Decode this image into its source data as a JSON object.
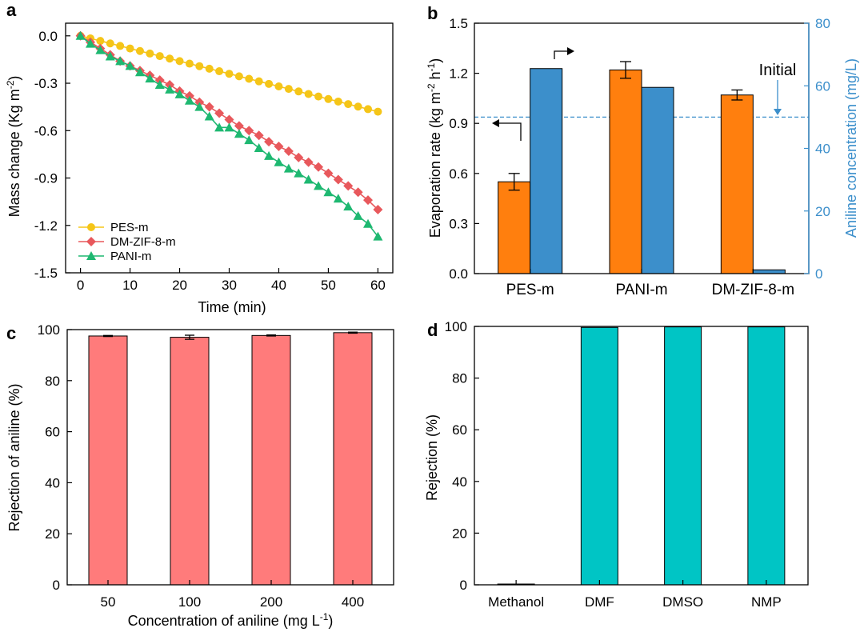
{
  "chart_data": [
    {
      "panel": "a",
      "type": "line",
      "xlabel": "Time (min)",
      "ylabel": "Mass change (Kg m-2)",
      "ylabel_main": "Mass change (Kg m",
      "ylabel_sup": "-2",
      "ylabel_end": ")",
      "xlim": [
        -3,
        63
      ],
      "ylim": [
        -1.5,
        0.08
      ],
      "xticks": [
        0,
        10,
        20,
        30,
        40,
        50,
        60
      ],
      "yticks": [
        0.0,
        -0.3,
        -0.6,
        -0.9,
        -1.2,
        -1.5
      ],
      "ytick_labels": [
        "0.0",
        "-0.3",
        "-0.6",
        "-0.9",
        "-1.2",
        "-1.5"
      ],
      "series": [
        {
          "name": "PES-m",
          "color": "#F5C518",
          "marker": "circle",
          "x": [
            0,
            2,
            4,
            6,
            8,
            10,
            12,
            14,
            16,
            18,
            20,
            22,
            24,
            26,
            28,
            30,
            32,
            34,
            36,
            38,
            40,
            42,
            44,
            46,
            48,
            50,
            52,
            54,
            56,
            58,
            60
          ],
          "y": [
            0,
            -0.016,
            -0.032,
            -0.048,
            -0.064,
            -0.08,
            -0.096,
            -0.112,
            -0.128,
            -0.144,
            -0.16,
            -0.176,
            -0.192,
            -0.208,
            -0.224,
            -0.24,
            -0.256,
            -0.272,
            -0.288,
            -0.304,
            -0.32,
            -0.336,
            -0.352,
            -0.368,
            -0.384,
            -0.4,
            -0.416,
            -0.432,
            -0.448,
            -0.464,
            -0.48
          ]
        },
        {
          "name": "DM-ZIF-8-m",
          "color": "#E8585C",
          "marker": "diamond",
          "x": [
            0,
            2,
            4,
            6,
            8,
            10,
            12,
            14,
            16,
            18,
            20,
            22,
            24,
            26,
            28,
            30,
            32,
            34,
            36,
            38,
            40,
            42,
            44,
            46,
            48,
            50,
            52,
            54,
            56,
            58,
            60
          ],
          "y": [
            0,
            -0.04,
            -0.08,
            -0.12,
            -0.16,
            -0.19,
            -0.22,
            -0.25,
            -0.28,
            -0.31,
            -0.35,
            -0.38,
            -0.42,
            -0.45,
            -0.49,
            -0.53,
            -0.57,
            -0.6,
            -0.63,
            -0.67,
            -0.7,
            -0.73,
            -0.77,
            -0.8,
            -0.83,
            -0.87,
            -0.91,
            -0.95,
            -0.99,
            -1.04,
            -1.1
          ]
        },
        {
          "name": "PANI-m",
          "color": "#1EB871",
          "marker": "triangle",
          "x": [
            0,
            2,
            4,
            6,
            8,
            10,
            12,
            14,
            16,
            18,
            20,
            22,
            24,
            26,
            28,
            30,
            32,
            34,
            36,
            38,
            40,
            42,
            44,
            46,
            48,
            50,
            52,
            54,
            56,
            58,
            60
          ],
          "y": [
            0,
            -0.05,
            -0.09,
            -0.13,
            -0.16,
            -0.19,
            -0.23,
            -0.27,
            -0.31,
            -0.34,
            -0.37,
            -0.41,
            -0.45,
            -0.51,
            -0.58,
            -0.58,
            -0.62,
            -0.66,
            -0.71,
            -0.76,
            -0.8,
            -0.84,
            -0.87,
            -0.91,
            -0.95,
            -0.99,
            -1.03,
            -1.08,
            -1.14,
            -1.19,
            -1.27
          ]
        }
      ],
      "legend": "bottom-left"
    },
    {
      "panel": "b",
      "type": "bar",
      "categories": [
        "PES-m",
        "PANI-m",
        "DM-ZIF-8-m"
      ],
      "ylabel_main": "Evaporation rate (kg m",
      "ylabel_sup1": "-2",
      "ylabel_mid": " h",
      "ylabel_sup2": "-1",
      "ylabel_end": ")",
      "ylabel_right": "Aniline concentration (mg/L)",
      "ylim": [
        0,
        1.5
      ],
      "ylim_right": [
        0,
        80
      ],
      "yticks": [
        0.0,
        0.3,
        0.6,
        0.9,
        1.2,
        1.5
      ],
      "ytick_labels": [
        "0.0",
        "0.3",
        "0.6",
        "0.9",
        "1.2",
        "1.5"
      ],
      "yticks_right": [
        0,
        20,
        40,
        60,
        80
      ],
      "series": [
        {
          "name": "Evaporation rate",
          "axis": "left",
          "color": "#FF7F0E",
          "values": [
            0.55,
            1.22,
            1.07
          ],
          "errors": [
            0.05,
            0.05,
            0.03
          ]
        },
        {
          "name": "Aniline concentration",
          "axis": "right",
          "color": "#3C8FCB",
          "values": [
            65.5,
            59.5,
            1.2
          ]
        }
      ],
      "initial_line": {
        "value": 50,
        "label": "Initial",
        "color": "#3C8FCB"
      },
      "right_axis_color": "#3C8FCB"
    },
    {
      "panel": "c",
      "type": "bar",
      "categories": [
        "50",
        "100",
        "200",
        "400"
      ],
      "values": [
        97.5,
        97.0,
        97.7,
        98.8
      ],
      "errors": [
        0.2,
        0.8,
        0.2,
        0.2
      ],
      "color": "#FF7B7B",
      "xlabel_main": "Concentration of aniline (mg L",
      "xlabel_sup": "-1",
      "xlabel_end": ")",
      "ylabel": "Rejection of aniline (%)",
      "ylim": [
        0,
        100
      ],
      "yticks": [
        0,
        20,
        40,
        60,
        80,
        100
      ]
    },
    {
      "panel": "d",
      "type": "bar",
      "categories": [
        "Methanol",
        "DMF",
        "DMSO",
        "NMP"
      ],
      "values": [
        0.3,
        99.6,
        99.8,
        99.8
      ],
      "color": "#00C5C5",
      "ylabel": "Rejection (%)",
      "ylim": [
        0,
        100
      ],
      "yticks": [
        0,
        20,
        40,
        60,
        80,
        100
      ]
    }
  ]
}
